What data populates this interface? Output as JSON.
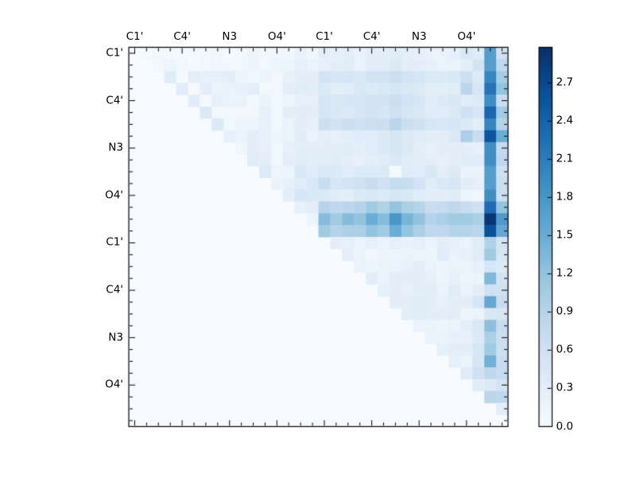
{
  "figure": {
    "background_color": "#ffffff",
    "plot_type_note": "upper-triangular pairwise heatmap with colorbar"
  },
  "axes": {
    "x_tick_labels": [
      "C1'",
      "C4'",
      "N3",
      "O4'",
      "C1'",
      "C4'",
      "N3",
      "O4'"
    ],
    "y_tick_labels": [
      "C1'",
      "C4'",
      "N3",
      "O4'",
      "C1'",
      "C4'",
      "N3",
      "O4'"
    ],
    "labeled_cell_indices": [
      0,
      4,
      8,
      12,
      16,
      20,
      24,
      28
    ],
    "n_cells": 32
  },
  "colorbar": {
    "tick_labels": [
      "0.0",
      "0.3",
      "0.6",
      "0.9",
      "1.2",
      "1.5",
      "1.8",
      "2.1",
      "2.4",
      "2.7"
    ],
    "tick_values": [
      0.0,
      0.3,
      0.6,
      0.9,
      1.2,
      1.5,
      1.8,
      2.1,
      2.4,
      2.7
    ],
    "vmin": 0.0,
    "vmax": 2.98,
    "colormap": "Blues",
    "colormap_stops": [
      "#f7fbff",
      "#deebf7",
      "#c6dbef",
      "#9ecae1",
      "#6baed6",
      "#4292c6",
      "#2171b5",
      "#08519c",
      "#08306b"
    ]
  },
  "chart_data": {
    "type": "heatmap",
    "n": 32,
    "x_group_labels": [
      "C1'",
      "C4'",
      "N3",
      "O4'",
      "C1'",
      "C4'",
      "N3",
      "O4'"
    ],
    "y_group_labels": [
      "C1'",
      "C4'",
      "N3",
      "O4'",
      "C1'",
      "C4'",
      "N3",
      "O4'"
    ],
    "label_every": 4,
    "vmin": 0.0,
    "vmax": 2.98,
    "structure": "upper-triangle-only",
    "matrix": [
      [
        0,
        0.05,
        0.1,
        0.05,
        0.05,
        0.05,
        0.1,
        0.12,
        0.05,
        0.1,
        0.15,
        0.1,
        0.12,
        0.1,
        0.2,
        0.12,
        0.3,
        0.25,
        0.3,
        0.2,
        0.3,
        0.3,
        0.35,
        0.3,
        0.25,
        0.2,
        0.2,
        0.25,
        0.45,
        0.35,
        1.7,
        0.6
      ],
      [
        0,
        0,
        0.1,
        0.15,
        0.1,
        0.05,
        0.1,
        0.12,
        0.1,
        0.1,
        0.15,
        0.1,
        0.15,
        0.15,
        0.25,
        0.2,
        0.25,
        0.3,
        0.35,
        0.2,
        0.3,
        0.3,
        0.4,
        0.3,
        0.3,
        0.25,
        0.2,
        0.2,
        0.3,
        0.55,
        1.7,
        0.8
      ],
      [
        0,
        0,
        0,
        0.35,
        0.05,
        0.3,
        0.25,
        0.25,
        0.3,
        0.15,
        0.1,
        0.15,
        0.1,
        0.25,
        0.3,
        0.3,
        0.55,
        0.5,
        0.5,
        0.45,
        0.55,
        0.55,
        0.65,
        0.55,
        0.5,
        0.4,
        0.4,
        0.45,
        0.65,
        0.4,
        2.0,
        1.05
      ],
      [
        0,
        0,
        0,
        0,
        0.35,
        0.05,
        0.3,
        0.2,
        0.2,
        0.25,
        0.3,
        0.1,
        0.1,
        0.3,
        0.35,
        0.3,
        0.4,
        0.3,
        0.35,
        0.45,
        0.4,
        0.45,
        0.5,
        0.45,
        0.4,
        0.3,
        0.3,
        0.35,
        0.85,
        0.5,
        2.2,
        1.2
      ],
      [
        0,
        0,
        0,
        0,
        0,
        0.35,
        0.05,
        0.25,
        0.2,
        0.2,
        0.1,
        0.2,
        0.1,
        0.15,
        0.25,
        0.25,
        0.5,
        0.45,
        0.5,
        0.5,
        0.55,
        0.55,
        0.65,
        0.55,
        0.5,
        0.35,
        0.4,
        0.45,
        0.35,
        0.4,
        1.9,
        0.7
      ],
      [
        0,
        0,
        0,
        0,
        0,
        0,
        0.4,
        0.1,
        0.1,
        0.1,
        0.1,
        0.25,
        0.1,
        0.3,
        0.3,
        0.3,
        0.5,
        0.45,
        0.4,
        0.5,
        0.55,
        0.5,
        0.6,
        0.5,
        0.45,
        0.35,
        0.35,
        0.4,
        0.6,
        0.5,
        2.35,
        1.1
      ],
      [
        0,
        0,
        0,
        0,
        0,
        0,
        0,
        0.4,
        0.1,
        0.15,
        0.15,
        0.25,
        0.1,
        0.2,
        0.3,
        0.25,
        0.65,
        0.55,
        0.65,
        0.6,
        0.65,
        0.65,
        0.85,
        0.65,
        0.6,
        0.5,
        0.45,
        0.5,
        0.4,
        0.3,
        2.0,
        0.9
      ],
      [
        0,
        0,
        0,
        0,
        0,
        0,
        0,
        0,
        0.25,
        0.2,
        0.3,
        0.25,
        0.15,
        0.2,
        0.35,
        0.2,
        0.3,
        0.25,
        0.3,
        0.35,
        0.35,
        0.4,
        0.5,
        0.4,
        0.35,
        0.3,
        0.3,
        0.4,
        1.0,
        0.7,
        2.55,
        1.5
      ],
      [
        0,
        0,
        0,
        0,
        0,
        0,
        0,
        0,
        0,
        0.12,
        0.3,
        0.25,
        0.1,
        0.25,
        0.3,
        0.3,
        0.3,
        0.3,
        0.35,
        0.3,
        0.35,
        0.4,
        0.5,
        0.4,
        0.3,
        0.25,
        0.3,
        0.3,
        0.3,
        0.25,
        1.9,
        0.75
      ],
      [
        0,
        0,
        0,
        0,
        0,
        0,
        0,
        0,
        0,
        0,
        0.35,
        0.3,
        0.1,
        0.3,
        0.35,
        0.3,
        0.3,
        0.35,
        0.3,
        0.25,
        0.3,
        0.35,
        0.45,
        0.35,
        0.3,
        0.3,
        0.25,
        0.3,
        0.35,
        0.35,
        1.9,
        0.8
      ],
      [
        0,
        0,
        0,
        0,
        0,
        0,
        0,
        0,
        0,
        0,
        0,
        0.4,
        0.15,
        0.15,
        0.45,
        0.35,
        0.45,
        0.4,
        0.35,
        0.4,
        0.4,
        0.4,
        0.05,
        0.35,
        0.35,
        0.45,
        0.3,
        0.4,
        0.2,
        0.2,
        1.7,
        0.6
      ],
      [
        0,
        0,
        0,
        0,
        0,
        0,
        0,
        0,
        0,
        0,
        0,
        0,
        0.2,
        0.25,
        0.35,
        0.45,
        0.7,
        0.5,
        0.55,
        0.6,
        0.7,
        0.6,
        0.75,
        0.7,
        0.55,
        0.35,
        0.45,
        0.5,
        0.3,
        0.25,
        1.7,
        0.68
      ],
      [
        0,
        0,
        0,
        0,
        0,
        0,
        0,
        0,
        0,
        0,
        0,
        0,
        0,
        0.3,
        0.5,
        0.45,
        0.4,
        0.35,
        0.3,
        0.4,
        0.45,
        0.4,
        0.5,
        0.45,
        0.35,
        0.3,
        0.3,
        0.35,
        0.15,
        0.12,
        1.9,
        0.65
      ],
      [
        0,
        0,
        0,
        0,
        0,
        0,
        0,
        0,
        0,
        0,
        0,
        0,
        0,
        0,
        0.25,
        0.3,
        0.9,
        0.8,
        0.85,
        0.9,
        1.1,
        0.95,
        1.2,
        1.0,
        0.9,
        0.7,
        0.75,
        0.8,
        0.7,
        0.6,
        2.3,
        1.2
      ],
      [
        0,
        0,
        0,
        0,
        0,
        0,
        0,
        0,
        0,
        0,
        0,
        0,
        0,
        0,
        0,
        0.15,
        1.3,
        1.1,
        1.3,
        1.2,
        1.5,
        1.3,
        1.8,
        1.4,
        1.2,
        0.9,
        1.0,
        1.1,
        1.1,
        1.0,
        2.9,
        1.75
      ],
      [
        0,
        0,
        0,
        0,
        0,
        0,
        0,
        0,
        0,
        0,
        0,
        0,
        0,
        0,
        0,
        0,
        1.1,
        0.9,
        1.0,
        1.0,
        1.2,
        1.1,
        1.5,
        1.2,
        1.0,
        0.8,
        0.8,
        0.9,
        0.9,
        0.85,
        2.6,
        1.55
      ],
      [
        0,
        0,
        0,
        0,
        0,
        0,
        0,
        0,
        0,
        0,
        0,
        0,
        0,
        0,
        0,
        0,
        0,
        0.3,
        0.25,
        0.2,
        0.25,
        0.2,
        0.25,
        0.2,
        0.25,
        0.2,
        0.3,
        0.25,
        0.2,
        0.35,
        0.95,
        0.55
      ],
      [
        0,
        0,
        0,
        0,
        0,
        0,
        0,
        0,
        0,
        0,
        0,
        0,
        0,
        0,
        0,
        0,
        0,
        0,
        0.3,
        0.2,
        0.1,
        0.15,
        0.15,
        0.2,
        0.15,
        0.15,
        0.35,
        0.2,
        0.25,
        0.35,
        1.1,
        0.5
      ],
      [
        0,
        0,
        0,
        0,
        0,
        0,
        0,
        0,
        0,
        0,
        0,
        0,
        0,
        0,
        0,
        0,
        0,
        0,
        0,
        0.2,
        0.15,
        0.2,
        0.2,
        0.25,
        0.3,
        0.2,
        0.15,
        0.2,
        0.2,
        0.25,
        0.5,
        0.4
      ],
      [
        0,
        0,
        0,
        0,
        0,
        0,
        0,
        0,
        0,
        0,
        0,
        0,
        0,
        0,
        0,
        0,
        0,
        0,
        0,
        0,
        0.3,
        0.2,
        0.3,
        0.3,
        0.3,
        0.25,
        0.15,
        0.25,
        0.15,
        0.2,
        1.35,
        0.55
      ],
      [
        0,
        0,
        0,
        0,
        0,
        0,
        0,
        0,
        0,
        0,
        0,
        0,
        0,
        0,
        0,
        0,
        0,
        0,
        0,
        0,
        0,
        0.25,
        0.3,
        0.25,
        0.3,
        0.3,
        0.2,
        0.35,
        0.2,
        0.3,
        0.6,
        0.6
      ],
      [
        0,
        0,
        0,
        0,
        0,
        0,
        0,
        0,
        0,
        0,
        0,
        0,
        0,
        0,
        0,
        0,
        0,
        0,
        0,
        0,
        0,
        0,
        0.3,
        0.3,
        0.35,
        0.3,
        0.25,
        0.3,
        0.3,
        0.5,
        1.55,
        0.7
      ],
      [
        0,
        0,
        0,
        0,
        0,
        0,
        0,
        0,
        0,
        0,
        0,
        0,
        0,
        0,
        0,
        0,
        0,
        0,
        0,
        0,
        0,
        0,
        0,
        0.3,
        0.35,
        0.3,
        0.3,
        0.3,
        0.15,
        0.2,
        0.45,
        0.5
      ],
      [
        0,
        0,
        0,
        0,
        0,
        0,
        0,
        0,
        0,
        0,
        0,
        0,
        0,
        0,
        0,
        0,
        0,
        0,
        0,
        0,
        0,
        0,
        0,
        0,
        0.2,
        0.2,
        0.15,
        0.2,
        0.3,
        0.45,
        1.25,
        0.7
      ],
      [
        0,
        0,
        0,
        0,
        0,
        0,
        0,
        0,
        0,
        0,
        0,
        0,
        0,
        0,
        0,
        0,
        0,
        0,
        0,
        0,
        0,
        0,
        0,
        0,
        0,
        0.2,
        0.2,
        0.25,
        0.25,
        0.4,
        1.0,
        0.65
      ],
      [
        0,
        0,
        0,
        0,
        0,
        0,
        0,
        0,
        0,
        0,
        0,
        0,
        0,
        0,
        0,
        0,
        0,
        0,
        0,
        0,
        0,
        0,
        0,
        0,
        0,
        0,
        0.25,
        0.3,
        0.3,
        0.5,
        1.1,
        0.65
      ],
      [
        0,
        0,
        0,
        0,
        0,
        0,
        0,
        0,
        0,
        0,
        0,
        0,
        0,
        0,
        0,
        0,
        0,
        0,
        0,
        0,
        0,
        0,
        0,
        0,
        0,
        0,
        0,
        0.25,
        0.2,
        0.5,
        1.45,
        0.7
      ],
      [
        0,
        0,
        0,
        0,
        0,
        0,
        0,
        0,
        0,
        0,
        0,
        0,
        0,
        0,
        0,
        0,
        0,
        0,
        0,
        0,
        0,
        0,
        0,
        0,
        0,
        0,
        0,
        0,
        0.35,
        0.6,
        0.8,
        0.75
      ],
      [
        0,
        0,
        0,
        0,
        0,
        0,
        0,
        0,
        0,
        0,
        0,
        0,
        0,
        0,
        0,
        0,
        0,
        0,
        0,
        0,
        0,
        0,
        0,
        0,
        0,
        0,
        0,
        0,
        0,
        0.35,
        0.4,
        0.55
      ],
      [
        0,
        0,
        0,
        0,
        0,
        0,
        0,
        0,
        0,
        0,
        0,
        0,
        0,
        0,
        0,
        0,
        0,
        0,
        0,
        0,
        0,
        0,
        0,
        0,
        0,
        0,
        0,
        0,
        0,
        0,
        0.85,
        0.8
      ],
      [
        0,
        0,
        0,
        0,
        0,
        0,
        0,
        0,
        0,
        0,
        0,
        0,
        0,
        0,
        0,
        0,
        0,
        0,
        0,
        0,
        0,
        0,
        0,
        0,
        0,
        0,
        0,
        0,
        0,
        0,
        0,
        0.3
      ],
      [
        0,
        0,
        0,
        0,
        0,
        0,
        0,
        0,
        0,
        0,
        0,
        0,
        0,
        0,
        0,
        0,
        0,
        0,
        0,
        0,
        0,
        0,
        0,
        0,
        0,
        0,
        0,
        0,
        0,
        0,
        0,
        0
      ]
    ]
  }
}
